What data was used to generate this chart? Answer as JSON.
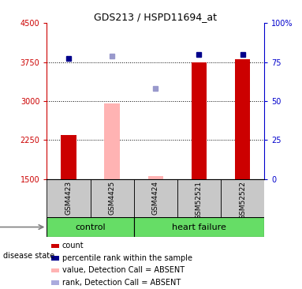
{
  "title": "GDS213 / HSPD11694_at",
  "samples": [
    "GSM4423",
    "GSM4425",
    "GSM4424",
    "GSM52521",
    "GSM52522"
  ],
  "groups": [
    "control",
    "control",
    "heart failure",
    "heart failure",
    "heart failure"
  ],
  "group_labels": [
    "control",
    "heart failure"
  ],
  "ylim_left": [
    1500,
    4500
  ],
  "ylim_right": [
    0,
    100
  ],
  "yticks_left": [
    1500,
    2250,
    3000,
    3750,
    4500
  ],
  "ytick_labels_left": [
    "1500",
    "2250",
    "3000",
    "3750",
    "4500"
  ],
  "yticks_right": [
    0,
    25,
    50,
    75,
    100
  ],
  "ytick_labels_right": [
    "0",
    "25",
    "50",
    "75",
    "100%"
  ],
  "bar_values": [
    2350,
    null,
    1560,
    3750,
    3800
  ],
  "bar_is_absent": [
    false,
    true,
    true,
    false,
    false
  ],
  "absent_bar_values": [
    null,
    2960,
    1560,
    null,
    null
  ],
  "bar_color_present": "#cc0000",
  "bar_color_absent": "#ffb3b3",
  "dot_values_present": [
    3820,
    null,
    null,
    3900,
    3900
  ],
  "dot_values_absent": [
    null,
    3870,
    3250,
    null,
    null
  ],
  "dot_color_present": "#00008B",
  "dot_color_absent": "#9999cc",
  "hgrid_values": [
    2250,
    3000,
    3750
  ],
  "bar_width": 0.35,
  "legend_items": [
    {
      "color": "#cc0000",
      "label": "count"
    },
    {
      "color": "#00008B",
      "label": "percentile rank within the sample"
    },
    {
      "color": "#ffb3b3",
      "label": "value, Detection Call = ABSENT"
    },
    {
      "color": "#aaaadd",
      "label": "rank, Detection Call = ABSENT"
    }
  ],
  "left_tick_color": "#cc0000",
  "right_tick_color": "#0000cc",
  "sample_box_color": "#c8c8c8",
  "group_box_color": "#66dd66"
}
